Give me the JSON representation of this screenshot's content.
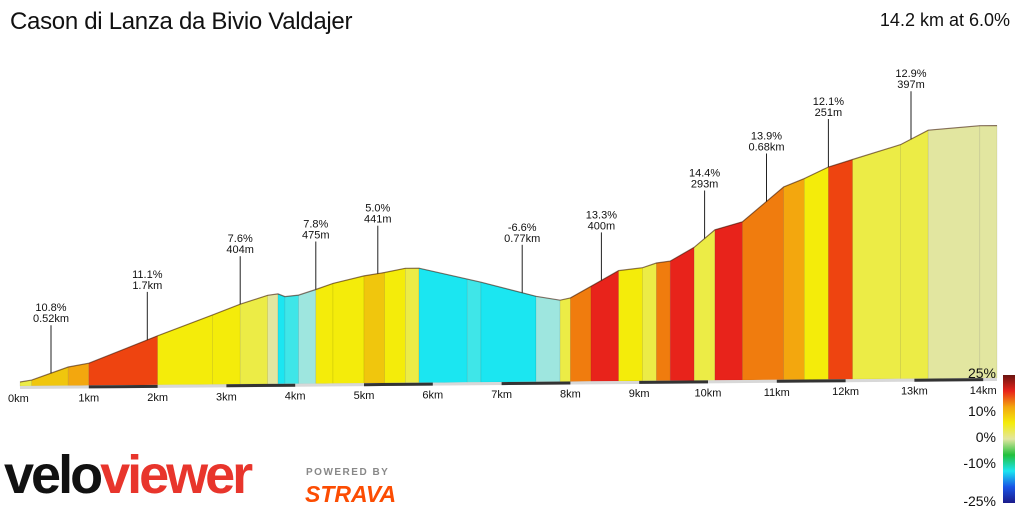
{
  "header": {
    "title": "Cason di Lanza da Bivio Valdajer",
    "summary": "14.2 km at 6.0%"
  },
  "branding": {
    "logo_part1": "velo",
    "logo_part2": "viewer",
    "powered_by": "POWERED BY",
    "strava": "STRAVA"
  },
  "chart_data": {
    "type": "area",
    "xlabel": "",
    "ylabel": "",
    "xlim": [
      0,
      14.2
    ],
    "x_ticks": [
      "0km",
      "1km",
      "2km",
      "3km",
      "4km",
      "5km",
      "6km",
      "7km",
      "8km",
      "9km",
      "10km",
      "11km",
      "12km",
      "13km",
      "14km"
    ],
    "profile_elevation_m": [
      {
        "x": 0.0,
        "elev": 0
      },
      {
        "x": 0.17,
        "elev": 4
      },
      {
        "x": 0.7,
        "elev": 32
      },
      {
        "x": 1.0,
        "elev": 40
      },
      {
        "x": 2.0,
        "elev": 99
      },
      {
        "x": 2.8,
        "elev": 144
      },
      {
        "x": 3.2,
        "elev": 167
      },
      {
        "x": 3.6,
        "elev": 186
      },
      {
        "x": 3.75,
        "elev": 189
      },
      {
        "x": 3.85,
        "elev": 183
      },
      {
        "x": 4.05,
        "elev": 186
      },
      {
        "x": 4.3,
        "elev": 198
      },
      {
        "x": 4.55,
        "elev": 211
      },
      {
        "x": 5.0,
        "elev": 227
      },
      {
        "x": 5.3,
        "elev": 234
      },
      {
        "x": 5.6,
        "elev": 243
      },
      {
        "x": 5.8,
        "elev": 243
      },
      {
        "x": 6.5,
        "elev": 218
      },
      {
        "x": 6.7,
        "elev": 211
      },
      {
        "x": 7.5,
        "elev": 179
      },
      {
        "x": 7.85,
        "elev": 170
      },
      {
        "x": 8.0,
        "elev": 175
      },
      {
        "x": 8.3,
        "elev": 200
      },
      {
        "x": 8.7,
        "elev": 234
      },
      {
        "x": 9.05,
        "elev": 240
      },
      {
        "x": 9.25,
        "elev": 250
      },
      {
        "x": 9.45,
        "elev": 254
      },
      {
        "x": 9.8,
        "elev": 284
      },
      {
        "x": 10.1,
        "elev": 322
      },
      {
        "x": 10.5,
        "elev": 339
      },
      {
        "x": 11.1,
        "elev": 415
      },
      {
        "x": 11.4,
        "elev": 433
      },
      {
        "x": 11.75,
        "elev": 458
      },
      {
        "x": 12.1,
        "elev": 474
      },
      {
        "x": 12.8,
        "elev": 506
      },
      {
        "x": 13.2,
        "elev": 537
      },
      {
        "x": 13.95,
        "elev": 546
      },
      {
        "x": 14.2,
        "elev": 546
      }
    ],
    "segment_grades_percent": [
      2,
      6,
      8,
      11,
      4,
      3,
      2,
      0,
      -8,
      -6,
      -4,
      4,
      3,
      5,
      4,
      2,
      -8,
      -6,
      -8,
      -4,
      1,
      9,
      13,
      3,
      2,
      10,
      13,
      2,
      13,
      9,
      8,
      4,
      12,
      2,
      1
    ],
    "annotations": [
      {
        "x": 0.45,
        "grade": "10.8%",
        "length": "0.52km"
      },
      {
        "x": 1.85,
        "grade": "11.1%",
        "length": "1.7km"
      },
      {
        "x": 3.2,
        "grade": "7.6%",
        "length": "404m"
      },
      {
        "x": 4.3,
        "grade": "7.8%",
        "length": "475m"
      },
      {
        "x": 5.2,
        "grade": "5.0%",
        "length": "441m"
      },
      {
        "x": 7.3,
        "grade": "-6.6%",
        "length": "0.77km"
      },
      {
        "x": 8.45,
        "grade": "13.3%",
        "length": "400m"
      },
      {
        "x": 9.95,
        "grade": "14.4%",
        "length": "293m"
      },
      {
        "x": 10.85,
        "grade": "13.9%",
        "length": "0.68km"
      },
      {
        "x": 11.75,
        "grade": "12.1%",
        "length": "251m"
      },
      {
        "x": 12.95,
        "grade": "12.9%",
        "length": "397m"
      }
    ],
    "color_scale": {
      "labels": [
        "25%",
        "10%",
        "0%",
        "-10%",
        "-25%"
      ],
      "stops": [
        "#6a1410",
        "#e8231b",
        "#f3a70e",
        "#f4ec0a",
        "#e2e6a0",
        "#22c03c",
        "#1be6f1",
        "#1a54e6",
        "#1b1b8a"
      ]
    },
    "grid": false
  }
}
